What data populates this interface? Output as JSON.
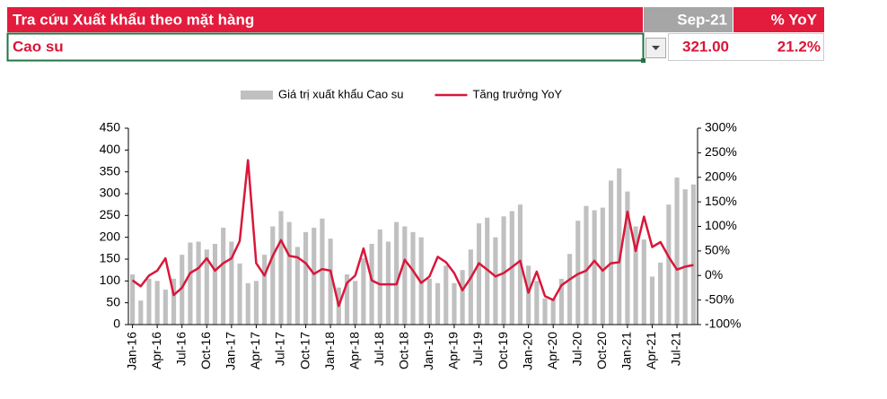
{
  "header": {
    "title": "Tra cứu Xuất khẩu theo mặt hàng",
    "period": "Sep-21",
    "yoy": "% YoY"
  },
  "selection": {
    "item": "Cao su",
    "value": "321.00",
    "yoy": "21.2%"
  },
  "chart_data": {
    "type": "bar",
    "categories": [
      "Jan-16",
      null,
      null,
      "Apr-16",
      null,
      null,
      "Jul-16",
      null,
      null,
      "Oct-16",
      null,
      null,
      "Jan-17",
      null,
      null,
      "Apr-17",
      null,
      null,
      "Jul-17",
      null,
      null,
      "Oct-17",
      null,
      null,
      "Jan-18",
      null,
      null,
      "Apr-18",
      null,
      null,
      "Jul-18",
      null,
      null,
      "Oct-18",
      null,
      null,
      "Jan-19",
      null,
      null,
      "Apr-19",
      null,
      null,
      "Jul-19",
      null,
      null,
      "Oct-19",
      null,
      null,
      "Jan-20",
      null,
      null,
      "Apr-20",
      null,
      null,
      "Jul-20",
      null,
      null,
      "Oct-20",
      null,
      null,
      "Jan-21",
      null,
      null,
      "Apr-21",
      null,
      null,
      "Jul-21",
      null,
      null
    ],
    "series": [
      {
        "name": "Giá trị xuất khẩu Cao su",
        "type": "bar",
        "color": "#c0c0c0",
        "values": [
          115,
          55,
          105,
          100,
          80,
          105,
          160,
          188,
          190,
          172,
          185,
          222,
          190,
          140,
          95,
          100,
          160,
          225,
          260,
          235,
          178,
          212,
          222,
          243,
          197,
          85,
          115,
          100,
          152,
          185,
          218,
          190,
          235,
          225,
          212,
          200,
          105,
          95,
          135,
          95,
          125,
          172,
          232,
          245,
          200,
          248,
          260,
          275,
          135,
          100,
          60,
          60,
          105,
          162,
          238,
          272,
          262,
          268,
          330,
          358,
          305,
          225,
          195,
          110,
          142,
          275,
          337,
          310,
          321
        ]
      },
      {
        "name": "Tăng trưởng YoY",
        "type": "line",
        "axis": "y2",
        "color": "#d9173a",
        "values": [
          -10,
          -22,
          0,
          10,
          35,
          -40,
          -25,
          5,
          15,
          35,
          10,
          25,
          35,
          70,
          235,
          25,
          0,
          40,
          72,
          40,
          37,
          25,
          3,
          13,
          10,
          -62,
          -15,
          0,
          55,
          -10,
          -18,
          -18,
          -18,
          32,
          10,
          -15,
          -2,
          38,
          27,
          5,
          -30,
          -5,
          25,
          12,
          -2,
          5,
          17,
          30,
          -35,
          8,
          -42,
          -50,
          -20,
          -8,
          3,
          10,
          30,
          10,
          25,
          27,
          130,
          50,
          120,
          58,
          68,
          38,
          12,
          18,
          21.2
        ]
      }
    ],
    "ylim": [
      0,
      450
    ],
    "yticks": [
      0,
      50,
      100,
      150,
      200,
      250,
      300,
      350,
      400,
      450
    ],
    "y2lim": [
      -100,
      300
    ],
    "y2ticks": [
      {
        "value": -100,
        "label": "-100%"
      },
      {
        "value": -50,
        "label": "-50%"
      },
      {
        "value": 0,
        "label": "0%"
      },
      {
        "value": 50,
        "label": "50%"
      },
      {
        "value": 100,
        "label": "100%"
      },
      {
        "value": 150,
        "label": "150%"
      },
      {
        "value": 200,
        "label": "200%"
      },
      {
        "value": 250,
        "label": "250%"
      },
      {
        "value": 300,
        "label": "300%"
      }
    ],
    "legend": "top"
  }
}
